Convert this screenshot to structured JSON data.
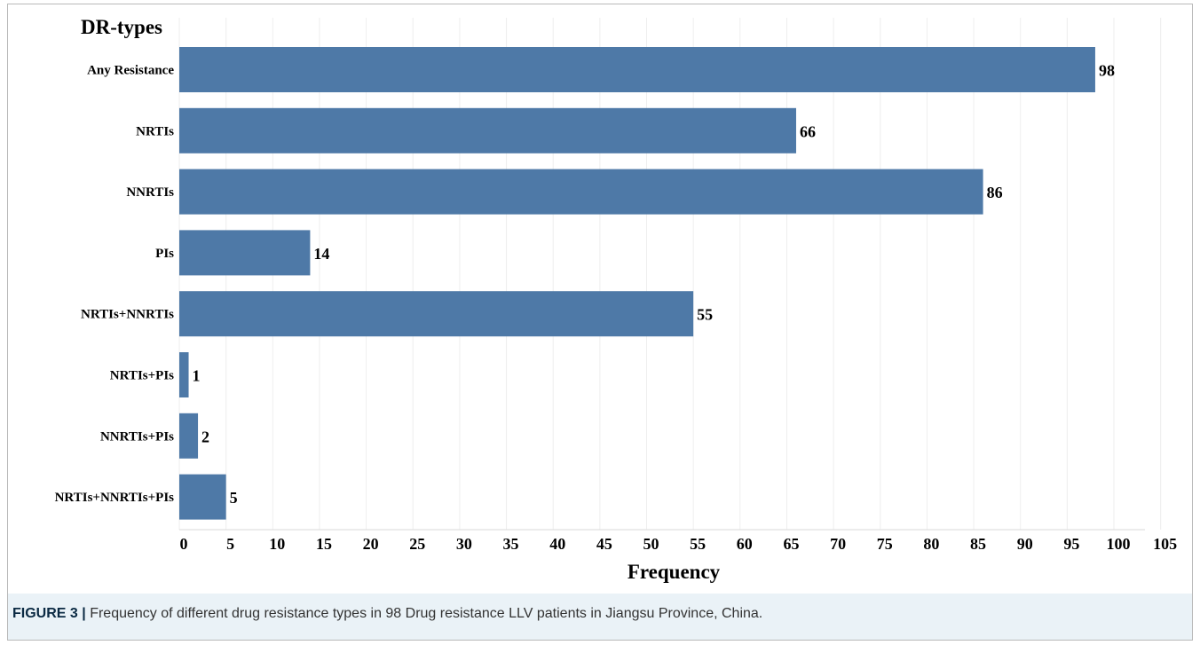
{
  "chart_data": {
    "type": "bar",
    "orientation": "horizontal",
    "y_title": "DR-types",
    "xlabel": "Frequency",
    "categories": [
      "Any Resistance",
      "NRTIs",
      "NNRTIs",
      "PIs",
      "NRTIs+NNRTIs",
      "NRTIs+PIs",
      "NNRTIs+PIs",
      "NRTIs+NNRTIs+PIs"
    ],
    "values": [
      98,
      66,
      86,
      14,
      55,
      1,
      2,
      5
    ],
    "data_labels": [
      "98",
      "66",
      "86",
      "14",
      "55",
      "1",
      "2",
      "5"
    ],
    "xlim": [
      0,
      105
    ],
    "xticks": [
      0,
      5,
      10,
      15,
      20,
      25,
      30,
      35,
      40,
      45,
      50,
      55,
      60,
      65,
      70,
      75,
      80,
      85,
      90,
      95,
      100,
      105
    ],
    "bar_color": "#4e79a7",
    "grid": "vertical",
    "legend": "none"
  },
  "caption": {
    "figure_label": "FIGURE 3",
    "separator": "|",
    "text": "Frequency of different drug resistance types in 98 Drug resistance LLV patients in Jiangsu Province, China."
  }
}
